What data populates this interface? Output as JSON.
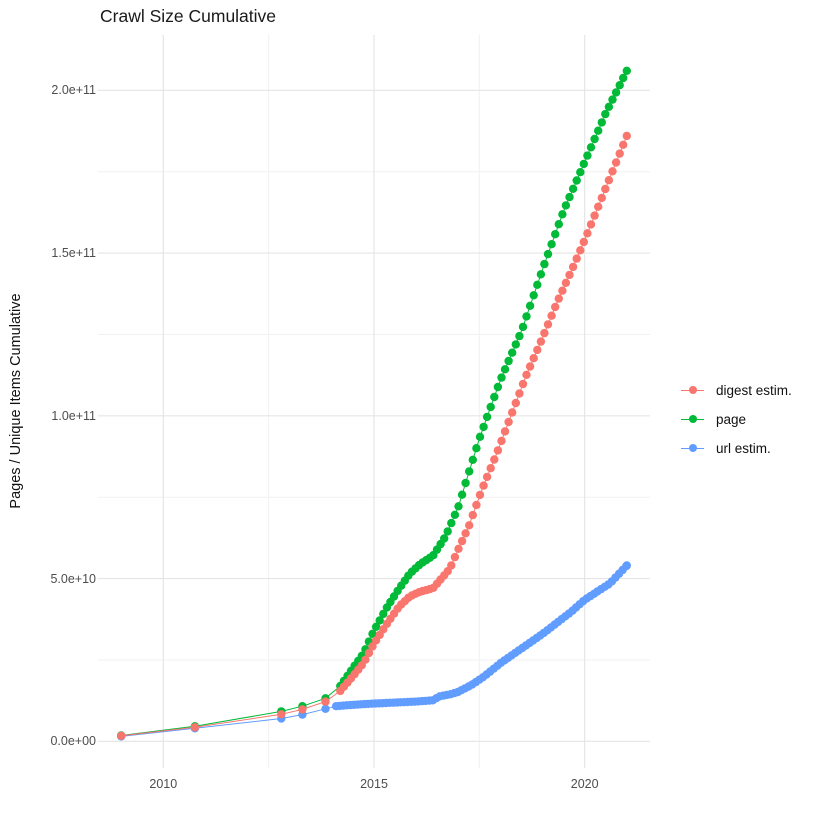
{
  "header": {
    "title": "Crawl Size Cumulative"
  },
  "chart_data": {
    "type": "line",
    "markers": true,
    "title": "Crawl Size Cumulative",
    "xlabel": "",
    "ylabel": "Pages / Unique Items Cumulative",
    "xlim": [
      2008.45,
      2021.55
    ],
    "ylim": [
      -8200000000.0,
      217000000000.0
    ],
    "grid": true,
    "grid_color_major": "#e5e5e5",
    "grid_color_minor": "#f1f1f1",
    "legend_position": "right",
    "x_ticks": {
      "major": [
        {
          "value": 2010,
          "label": "2010"
        },
        {
          "value": 2015,
          "label": "2015"
        },
        {
          "value": 2020,
          "label": "2020"
        }
      ],
      "minor": [
        2012.5,
        2017.5
      ]
    },
    "y_ticks": {
      "major": [
        {
          "value": 0,
          "label": "0.0e+00"
        },
        {
          "value": 50000000000.0,
          "label": "5.0e+10"
        },
        {
          "value": 100000000000.0,
          "label": "1.0e+11"
        },
        {
          "value": 150000000000.0,
          "label": "1.5e+11"
        },
        {
          "value": 200000000000.0,
          "label": "2.0e+11"
        }
      ],
      "minor": [
        25000000000.0,
        75000000000.0,
        125000000000.0,
        175000000000.0
      ]
    },
    "dot_radius": 4.2,
    "dot_step_years": 0.085,
    "series": [
      {
        "name": "url estim.",
        "color": "#619CFF",
        "dense_from": 2014.1,
        "points": [
          [
            2009.0,
            1500000000.0
          ],
          [
            2010.75,
            4000000000.0
          ],
          [
            2012.8,
            7000000000.0
          ],
          [
            2013.3,
            8200000000.0
          ],
          [
            2013.85,
            10000000000.0
          ],
          [
            2014.1,
            10800000000.0
          ],
          [
            2014.5,
            11200000000.0
          ],
          [
            2015.0,
            11600000000.0
          ],
          [
            2015.5,
            11900000000.0
          ],
          [
            2016.0,
            12200000000.0
          ],
          [
            2016.4,
            12600000000.0
          ],
          [
            2016.55,
            13800000000.0
          ],
          [
            2016.8,
            14400000000.0
          ],
          [
            2017.0,
            15200000000.0
          ],
          [
            2017.3,
            17200000000.0
          ],
          [
            2017.6,
            19800000000.0
          ],
          [
            2018.0,
            24000000000.0
          ],
          [
            2018.5,
            28500000000.0
          ],
          [
            2019.0,
            33000000000.0
          ],
          [
            2019.4,
            37000000000.0
          ],
          [
            2019.7,
            40000000000.0
          ],
          [
            2020.0,
            43500000000.0
          ],
          [
            2020.3,
            46000000000.0
          ],
          [
            2020.6,
            48500000000.0
          ],
          [
            2021.0,
            54000000000.0
          ]
        ]
      },
      {
        "name": "page",
        "color": "#00BA38",
        "dense_from": 2014.2,
        "points": [
          [
            2009.0,
            1800000000.0
          ],
          [
            2010.75,
            4600000000.0
          ],
          [
            2012.8,
            9200000000.0
          ],
          [
            2013.3,
            10800000000.0
          ],
          [
            2013.85,
            13200000000.0
          ],
          [
            2014.2,
            17000000000.0
          ],
          [
            2014.5,
            22500000000.0
          ],
          [
            2014.75,
            27000000000.0
          ],
          [
            2015.0,
            34000000000.0
          ],
          [
            2015.3,
            41000000000.0
          ],
          [
            2015.6,
            47000000000.0
          ],
          [
            2015.85,
            51500000000.0
          ],
          [
            2016.1,
            54500000000.0
          ],
          [
            2016.4,
            57000000000.0
          ],
          [
            2016.7,
            63000000000.0
          ],
          [
            2017.0,
            72000000000.0
          ],
          [
            2017.5,
            93000000000.0
          ],
          [
            2018.0,
            111000000000.0
          ],
          [
            2018.5,
            126000000000.0
          ],
          [
            2019.0,
            145000000000.0
          ],
          [
            2019.5,
            163000000000.0
          ],
          [
            2020.0,
            178000000000.0
          ],
          [
            2020.5,
            193000000000.0
          ],
          [
            2021.0,
            206000000000.0
          ]
        ]
      },
      {
        "name": "digest estim.",
        "color": "#F8766D",
        "dense_from": 2014.2,
        "points": [
          [
            2009.0,
            1700000000.0
          ],
          [
            2010.75,
            4300000000.0
          ],
          [
            2012.8,
            8300000000.0
          ],
          [
            2013.3,
            9800000000.0
          ],
          [
            2013.85,
            12200000000.0
          ],
          [
            2014.2,
            15500000000.0
          ],
          [
            2014.5,
            20000000000.0
          ],
          [
            2014.75,
            24000000000.0
          ],
          [
            2015.0,
            30000000000.0
          ],
          [
            2015.3,
            36000000000.0
          ],
          [
            2015.6,
            41500000000.0
          ],
          [
            2015.85,
            44500000000.0
          ],
          [
            2016.1,
            46000000000.0
          ],
          [
            2016.4,
            47000000000.0
          ],
          [
            2016.6,
            50000000000.0
          ],
          [
            2016.8,
            53000000000.0
          ],
          [
            2017.0,
            59000000000.0
          ],
          [
            2017.25,
            66000000000.0
          ],
          [
            2017.55,
            77000000000.0
          ],
          [
            2017.9,
            88000000000.0
          ],
          [
            2018.25,
            100000000000.0
          ],
          [
            2018.6,
            112000000000.0
          ],
          [
            2019.0,
            124000000000.0
          ],
          [
            2019.35,
            135000000000.0
          ],
          [
            2019.7,
            145000000000.0
          ],
          [
            2020.0,
            154000000000.0
          ],
          [
            2020.5,
            170000000000.0
          ],
          [
            2021.0,
            186000000000.0
          ]
        ]
      }
    ],
    "legend_order": [
      "digest estim.",
      "page",
      "url estim."
    ]
  }
}
